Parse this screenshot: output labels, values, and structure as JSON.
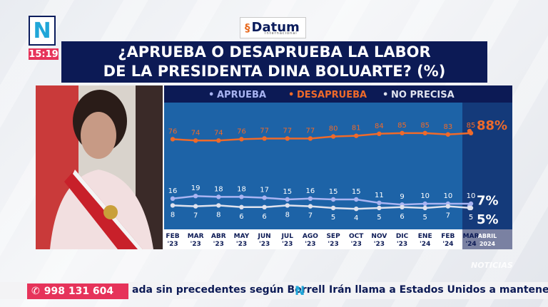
{
  "channel": {
    "logo_glyph": "N",
    "time": "15:19"
  },
  "source_badge": {
    "name": "Datum",
    "sub": "Internacional"
  },
  "title_lines": [
    "¿APRUEBA O DESAPRUEBA LA LABOR",
    "DE LA PRESIDENTA DINA BOLUARTE? (%)"
  ],
  "chart_data": {
    "type": "line",
    "title": "¿APRUEBA O DESAPRUEBA LA LABOR DE LA PRESIDENTA DINA BOLUARTE? (%)",
    "categories": [
      "FEB '23",
      "MAR '23",
      "ABR '23",
      "MAY '23",
      "JUN '23",
      "JUL '23",
      "AGO '23",
      "SEP '23",
      "OCT '23",
      "NOV '23",
      "DIC '23",
      "ENE '24",
      "FEB '24",
      "MAR '24",
      "ABRIL 2024"
    ],
    "x_labels": [
      [
        "FEB",
        "'23"
      ],
      [
        "MAR",
        "'23"
      ],
      [
        "ABR",
        "'23"
      ],
      [
        "MAY",
        "'23"
      ],
      [
        "JUN",
        "'23"
      ],
      [
        "JUL",
        "'23"
      ],
      [
        "AGO",
        "'23"
      ],
      [
        "SEP",
        "'23"
      ],
      [
        "OCT",
        "'23"
      ],
      [
        "NOV",
        "'23"
      ],
      [
        "DIC",
        "'23"
      ],
      [
        "ENE",
        "'24"
      ],
      [
        "FEB",
        "'24"
      ],
      [
        "MAR",
        "'24"
      ],
      [
        "ABRIL",
        "2024"
      ]
    ],
    "series": [
      {
        "name": "APRUEBA",
        "color": "#a9b4f2",
        "values": [
          16,
          19,
          18,
          18,
          17,
          15,
          16,
          15,
          15,
          11,
          9,
          10,
          10,
          10,
          7
        ]
      },
      {
        "name": "DESAPRUEBA",
        "color": "#ef6a2a",
        "values": [
          76,
          74,
          74,
          76,
          77,
          77,
          77,
          80,
          81,
          84,
          85,
          85,
          83,
          85,
          88
        ]
      },
      {
        "name": "NO PRECISA",
        "color": "#dfe2ee",
        "values": [
          8,
          7,
          8,
          6,
          6,
          8,
          7,
          5,
          4,
          5,
          6,
          5,
          7,
          5,
          5
        ]
      }
    ],
    "highlight_last": true,
    "legend_position": "top",
    "grid": false,
    "ylim": [
      0,
      100
    ]
  },
  "ticker": {
    "phone": "998 131 604",
    "left_text": "ada sin precedentes según Borrell",
    "logo_glyph": "N",
    "right_text": "Irán llama a Estados Unidos a mantenerse"
  },
  "watermark": "NOTICIAS"
}
